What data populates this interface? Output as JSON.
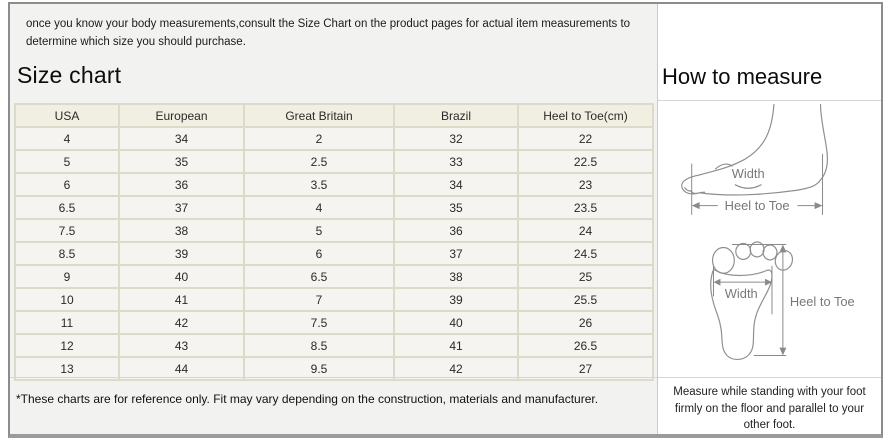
{
  "intro": {
    "text": "once you know your body measurements,consult the Size Chart on the product pages for actual item measurements to determine which size you should purchase."
  },
  "size_chart": {
    "title": "Size chart",
    "columns": [
      "USA",
      "European",
      "Great Britain",
      "Brazil",
      "Heel to Toe(cm)"
    ],
    "rows": [
      [
        "4",
        "34",
        "2",
        "32",
        "22"
      ],
      [
        "5",
        "35",
        "2.5",
        "33",
        "22.5"
      ],
      [
        "6",
        "36",
        "3.5",
        "34",
        "23"
      ],
      [
        "6.5",
        "37",
        "4",
        "35",
        "23.5"
      ],
      [
        "7.5",
        "38",
        "5",
        "36",
        "24"
      ],
      [
        "8.5",
        "39",
        "6",
        "37",
        "24.5"
      ],
      [
        "9",
        "40",
        "6.5",
        "38",
        "25"
      ],
      [
        "10",
        "41",
        "7",
        "39",
        "25.5"
      ],
      [
        "11",
        "42",
        "7.5",
        "40",
        "26"
      ],
      [
        "12",
        "43",
        "8.5",
        "41",
        "26.5"
      ],
      [
        "13",
        "44",
        "9.5",
        "42",
        "27"
      ]
    ],
    "footnote": "*These charts are for reference only. Fit may vary depending on the construction, materials and manufacturer."
  },
  "how_to_measure": {
    "title": "How to measure",
    "side_view": {
      "width_label": "Width",
      "heel_to_toe_label": "Heel to Toe"
    },
    "top_view": {
      "width_label": "Width",
      "heel_to_toe_label": "Heel to Toe"
    },
    "note": "Measure while standing with your foot firmly on the floor and parallel to your other foot."
  },
  "colors": {
    "panel_left_bg": "#f2f2f1",
    "panel_right_bg": "#ffffff",
    "table_header_bg": "#f0efe2",
    "table_cell_bg": "#f5f4f0",
    "table_border": "#dcdbca",
    "frame_border": "#8c8c8c",
    "diagram_stroke": "#8f8f8f"
  }
}
